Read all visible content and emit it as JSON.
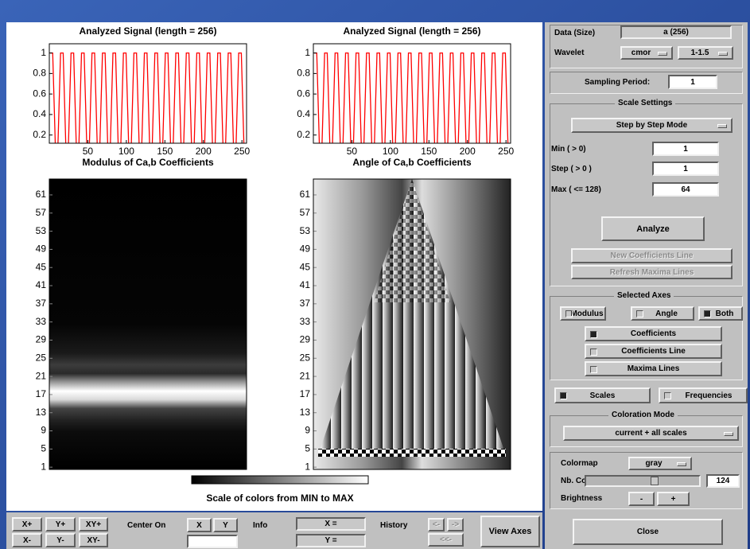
{
  "plots": [
    {
      "title": "Analyzed Signal  (length = 256)",
      "xlim": [
        0,
        256
      ],
      "ylim": [
        0.12,
        1.09
      ],
      "xticks": [
        50,
        100,
        150,
        200,
        250
      ],
      "yticks": [
        0.2,
        0.4,
        0.6,
        0.8,
        1
      ]
    },
    {
      "title": "Analyzed Signal  (length = 256)",
      "xlim": [
        0,
        256
      ],
      "ylim": [
        0.12,
        1.09
      ],
      "xticks": [
        50,
        100,
        150,
        200,
        250
      ],
      "yticks": [
        0.2,
        0.4,
        0.6,
        0.8,
        1
      ]
    },
    {
      "title": "Modulus of Ca,b Coefficients",
      "ylim": [
        0.5,
        64.5
      ],
      "yticks": [
        1,
        5,
        9,
        13,
        17,
        21,
        25,
        29,
        33,
        37,
        41,
        45,
        49,
        53,
        57,
        61
      ]
    },
    {
      "title": "Angle of Ca,b Coefficients",
      "ylim": [
        0.5,
        64.5
      ],
      "yticks": [
        1,
        5,
        9,
        13,
        17,
        21,
        25,
        29,
        33,
        37,
        41,
        45,
        49,
        53,
        57,
        61
      ]
    }
  ],
  "signal": {
    "color": "#ff0000",
    "x": [
      1,
      4.4,
      7.8,
      11.2,
      14.6,
      18,
      21.4,
      24.8,
      28.2,
      31.6,
      35,
      38.4,
      41.8,
      45.2,
      48.6,
      52,
      55.4,
      58.8,
      62.2,
      65.6,
      69,
      72.4,
      75.8,
      79.2,
      82.6,
      86,
      89.4,
      92.8,
      96.2,
      99.6,
      103,
      106.4,
      109.8,
      113.2,
      116.6,
      120,
      123.4,
      126.8,
      130.2,
      133.6,
      137,
      140.4,
      143.8,
      147.2,
      150.6,
      154,
      157.4,
      160.8,
      164.2,
      167.6,
      171,
      174.4,
      177.8,
      181.2,
      184.6,
      188,
      191.4,
      194.8,
      198.2,
      201.6,
      205,
      208.4,
      211.8,
      215.2,
      218.6,
      222,
      225.4,
      228.8,
      232.2,
      235.6,
      239,
      242.4,
      245.8,
      249.2,
      252.6,
      256
    ],
    "values": [
      1,
      1,
      0.1,
      0.1,
      1,
      1,
      0.1,
      0.1,
      1,
      1,
      0.1,
      0.1,
      1,
      1,
      0.1,
      0.1,
      1,
      1,
      0.1,
      0.1,
      1,
      1,
      0.1,
      0.1,
      1,
      1,
      0.1,
      0.1,
      1,
      1,
      0.1,
      0.1,
      1,
      1,
      0.1,
      0.1,
      1,
      1,
      0.1,
      0.1,
      1,
      1,
      0.1,
      0.1,
      1,
      1,
      0.1,
      0.1,
      1,
      1,
      0.1,
      0.1,
      1,
      1,
      0.1,
      0.1,
      1,
      1,
      0.1,
      0.1,
      1,
      1,
      0.1,
      0.1,
      1,
      1,
      0.1,
      0.1,
      1,
      1,
      0.1,
      0.1,
      1,
      1,
      0.1,
      0.1
    ]
  },
  "colorbar": {
    "label": "Scale of colors from MIN to MAX"
  },
  "controls": {
    "data_label": "Data  (Size)",
    "data_value": "a  (256)",
    "wavelet_label": "Wavelet",
    "wavelet_family": "cmor",
    "wavelet_number": "1-1.5",
    "sampling_label": "Sampling Period:",
    "sampling_value": 1,
    "scale_title": "Scale Settings",
    "scale_mode": "Step by Step Mode",
    "min_label": "Min  ( > 0)",
    "min_value": 1,
    "step_label": "Step  ( > 0 )",
    "step_value": 1,
    "max_label": "Max  ( <= 128)",
    "max_value": 64,
    "analyze": "Analyze",
    "new_line": "New Coefficients Line",
    "refresh": "Refresh Maxima Lines",
    "axes_title": "Selected Axes",
    "modulus": "Modulus",
    "angle": "Angle",
    "both": "Both",
    "coefficients": "Coefficients",
    "coefficients_line": "Coefficients Line",
    "maxima_lines": "Maxima Lines",
    "scales": "Scales",
    "frequencies": "Frequencies",
    "coloration_title": "Coloration Mode",
    "coloration_value": "current + all scales",
    "colormap_label": "Colormap",
    "colormap_value": "gray",
    "nbcolors_label": "Nb. Colors",
    "nbcolors_value": 124,
    "brightness_label": "Brightness",
    "minus": "-",
    "plus": "+",
    "close": "Close"
  },
  "toolbar": {
    "xplus": "X+",
    "yplus": "Y+",
    "xyplus": "XY+",
    "xminus": "X-",
    "yminus": "Y-",
    "xyminus": "XY-",
    "center_on": "Center On",
    "x": "X",
    "y": "Y",
    "info": "Info",
    "x_eq": "X =",
    "y_eq": "Y =",
    "history": "History",
    "back": "<-",
    "forward": "->",
    "first": "<<-",
    "view_axes": "View Axes"
  }
}
